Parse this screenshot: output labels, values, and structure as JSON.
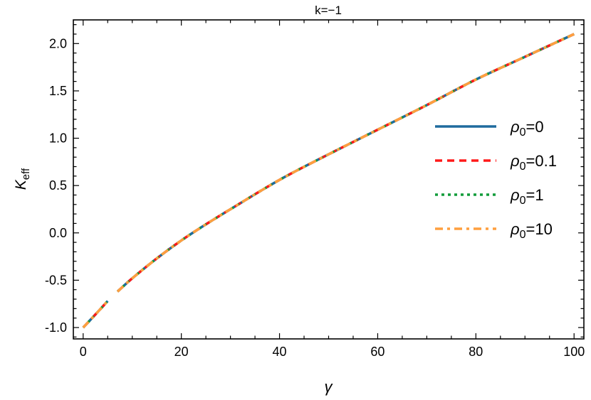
{
  "chart_data": {
    "type": "line",
    "title": "k=−1",
    "xlabel": "γ",
    "ylabel": "K",
    "ylabel_sub": "eff",
    "xlim": [
      -2,
      102
    ],
    "ylim": [
      -1.12,
      2.25
    ],
    "xticks": [
      0,
      20,
      40,
      60,
      80,
      100
    ],
    "xtick_labels": [
      "0",
      "20",
      "40",
      "60",
      "80",
      "100"
    ],
    "yticks": [
      -1.0,
      -0.5,
      0.0,
      0.5,
      1.0,
      1.5,
      2.0
    ],
    "ytick_labels": [
      "-1.0",
      "-0.5",
      "0.0",
      "0.5",
      "1.0",
      "1.5",
      "2.0"
    ],
    "grid": false,
    "legend_placement": "right",
    "x": [
      0,
      2,
      5,
      null,
      7,
      10,
      15,
      20,
      25,
      30,
      40,
      50,
      60,
      70,
      80,
      90,
      100
    ],
    "y": [
      -1.0,
      -0.89,
      -0.72,
      null,
      -0.62,
      -0.48,
      -0.27,
      -0.08,
      0.09,
      0.25,
      0.56,
      0.83,
      1.09,
      1.35,
      1.62,
      1.86,
      2.1
    ],
    "series": [
      {
        "name": "ρ",
        "sub": "0",
        "value": "=0",
        "color": "#1f6b9e",
        "dash": "solid"
      },
      {
        "name": "ρ",
        "sub": "0",
        "value": "=0.1",
        "color": "#ff1a1a",
        "dash": "dashed"
      },
      {
        "name": "ρ",
        "sub": "0",
        "value": "=1",
        "color": "#119c3a",
        "dash": "dotted"
      },
      {
        "name": "ρ",
        "sub": "0",
        "value": "=10",
        "color": "#ff9f3f",
        "dash": "dashdot"
      }
    ]
  }
}
